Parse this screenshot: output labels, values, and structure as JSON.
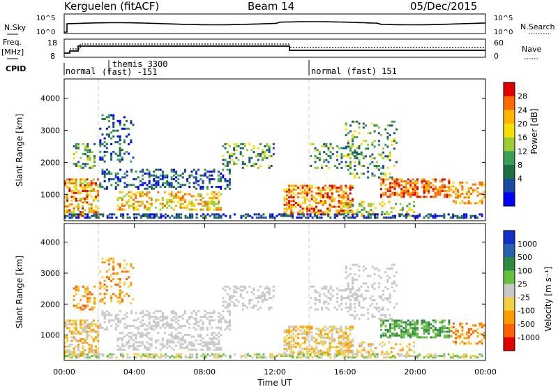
{
  "header": {
    "station": "Kerguelen (fitACF)",
    "beam": "Beam 14",
    "date": "05/Dec/2015"
  },
  "summary": {
    "nsky_label": "N.Sky",
    "nsearch_label": "N.Search",
    "nsky_ticks": [
      "10^5",
      "10^0"
    ],
    "nsearch_ticks": [
      "10^5",
      "10^0"
    ],
    "freq_label": "Freq.",
    "freq_unit": "[MHz]",
    "freq_ticks": [
      "18",
      "8"
    ],
    "nave_label": "Nave",
    "nave_ticks": [
      "60",
      "0"
    ],
    "cpid_label": "CPID",
    "cpid_segments": [
      {
        "label": "normal",
        "start": 0,
        "end": 1.75
      },
      {
        "label": "themis 3300",
        "sub": "(fast) -151",
        "start": 1.75,
        "end": 14.0
      },
      {
        "label": "normal (fast) 151",
        "start": 14.0,
        "end": 24
      }
    ]
  },
  "chart_data": [
    {
      "type": "heatmap",
      "name": "power",
      "ylabel": "Slant Range [km]",
      "xlabel": "",
      "yticks": [
        1000,
        2000,
        3000,
        4000
      ],
      "ylim": [
        180,
        4600
      ],
      "xlim": [
        0,
        24
      ],
      "colorbar_label": "Power [dB]",
      "colorbar_ticks": [
        "28",
        "24",
        "20",
        "16",
        "12",
        "8",
        "4"
      ],
      "colorbar_colors": [
        "#e00000",
        "#ff6a00",
        "#ffb400",
        "#f2e000",
        "#9acd32",
        "#3aa055",
        "#1c7040",
        "#1a4aa0",
        "#0000ff"
      ]
    },
    {
      "type": "heatmap",
      "name": "velocity",
      "ylabel": "Slant Range [km]",
      "xlabel": "Time UT",
      "yticks": [
        1000,
        2000,
        3000,
        4000
      ],
      "ylim": [
        180,
        4600
      ],
      "xlim": [
        0,
        24
      ],
      "xticks": [
        "00:00",
        "04:00",
        "08:00",
        "12:00",
        "16:00",
        "20:00",
        "00:00"
      ],
      "colorbar_label": "Velocity [m s⁻¹]",
      "colorbar_ticks": [
        "1000",
        "500",
        "100",
        "25",
        "-25",
        "-100",
        "-500",
        "-1000"
      ],
      "colorbar_colors": [
        "#1030c8",
        "#2a60b0",
        "#2e8a3e",
        "#66c040",
        "#c8c8c8",
        "#f0d040",
        "#ff9a00",
        "#ff6000",
        "#e00000"
      ]
    }
  ]
}
